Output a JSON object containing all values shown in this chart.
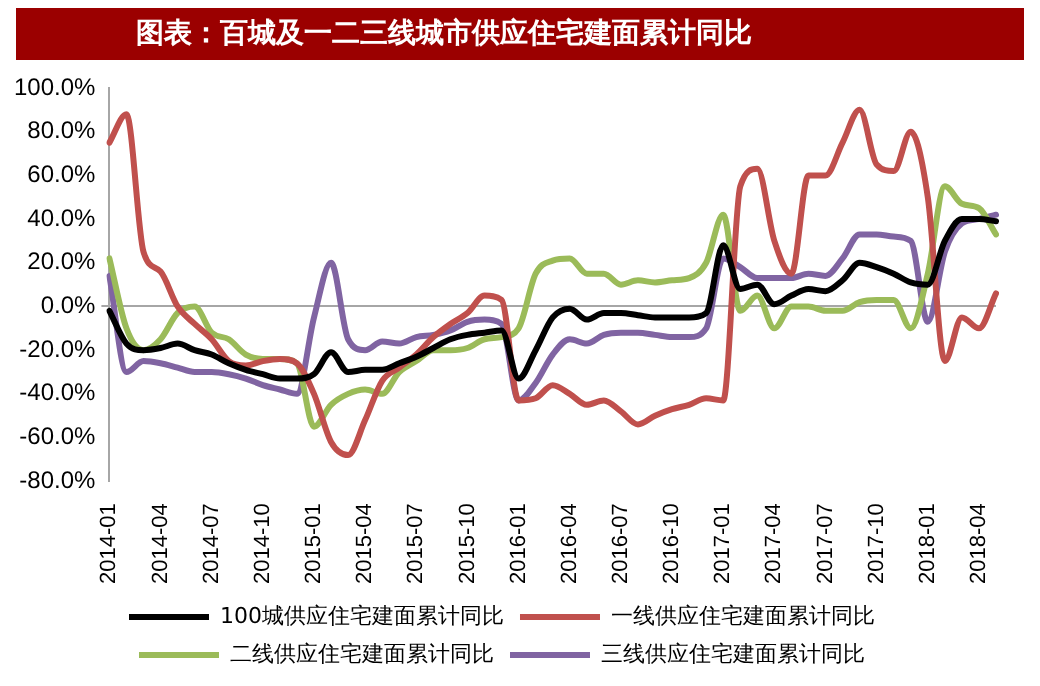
{
  "chart_data": {
    "type": "line",
    "title": "图表：百城及一二三线城市供应住宅建面累计同比",
    "categories": [
      "2014-01",
      null,
      null,
      "2014-04",
      null,
      null,
      "2014-07",
      null,
      null,
      "2014-10",
      null,
      null,
      "2015-01",
      null,
      null,
      "2015-04",
      null,
      null,
      "2015-07",
      null,
      null,
      "2015-10",
      null,
      null,
      "2016-01",
      null,
      null,
      "2016-04",
      null,
      null,
      "2016-07",
      null,
      null,
      "2016-10",
      null,
      null,
      "2017-01",
      null,
      null,
      "2017-04",
      null,
      null,
      "2017-07",
      null,
      null,
      "2017-10",
      null,
      null,
      "2018-01",
      null,
      null,
      "2018-04",
      null
    ],
    "series": [
      {
        "name": "100城供应住宅建面累计同比",
        "color": "#000000",
        "values": [
          -2,
          -17,
          -20,
          -19,
          -17,
          -20,
          -22,
          -26,
          -29,
          -31,
          -33,
          -33,
          -31,
          -21,
          -30,
          -29,
          -29,
          -26,
          -23,
          -19,
          -15,
          -13,
          -12,
          -11,
          -33,
          -20,
          -5,
          -1,
          -6,
          -3,
          -3,
          -4,
          -5,
          -5,
          -5,
          -3,
          28,
          8,
          10,
          1,
          5,
          8,
          7,
          12,
          20,
          18,
          15,
          11,
          10,
          30,
          40,
          40,
          39
        ]
      },
      {
        "name": "一线供应住宅建面累计同比",
        "color": "#c0504d",
        "values": [
          75,
          88,
          25,
          16,
          0,
          -8,
          -15,
          -25,
          -27,
          -25,
          -24,
          -26,
          -40,
          -62,
          -68,
          -52,
          -34,
          -28,
          -22,
          -14,
          -8,
          -3,
          5,
          3,
          -43,
          -42,
          -36,
          -40,
          -45,
          -43,
          -48,
          -54,
          -50,
          -47,
          -45,
          -42,
          -43,
          55,
          63,
          30,
          15,
          60,
          60,
          75,
          90,
          65,
          62,
          80,
          50,
          -25,
          -5,
          -10,
          6
        ]
      },
      {
        "name": "二线供应住宅建面累计同比",
        "color": "#9bbb59",
        "values": [
          22,
          -10,
          -20,
          -15,
          -3,
          0,
          -12,
          -15,
          -22,
          -24,
          -24,
          -26,
          -55,
          -45,
          -40,
          -38,
          -40,
          -30,
          -25,
          -20,
          -20,
          -19,
          -15,
          -14,
          -10,
          15,
          21,
          22,
          15,
          15,
          10,
          12,
          11,
          12,
          13,
          20,
          42,
          -2,
          5,
          -10,
          0,
          0,
          -2,
          -2,
          2,
          3,
          3,
          -10,
          15,
          55,
          47,
          45,
          33
        ]
      },
      {
        "name": "三线供应住宅建面累计同比",
        "color": "#8064a2",
        "values": [
          14,
          -30,
          -25,
          -26,
          -28,
          -30,
          -30,
          -31,
          -33,
          -36,
          -38,
          -40,
          -5,
          20,
          -15,
          -20,
          -16,
          -17,
          -14,
          -13,
          -11,
          -7,
          -6,
          -8,
          -43,
          -35,
          -22,
          -15,
          -17,
          -13,
          -12,
          -12,
          -13,
          -14,
          -14,
          -10,
          22,
          18,
          13,
          13,
          13,
          15,
          14,
          22,
          33,
          33,
          32,
          30,
          -7,
          25,
          38,
          40,
          42
        ]
      }
    ],
    "ylim": [
      -80,
      100
    ],
    "yticks": [
      {
        "value": -80,
        "label": "-80.0%"
      },
      {
        "value": -60,
        "label": "-60.0%"
      },
      {
        "value": -40,
        "label": "-40.0%"
      },
      {
        "value": -20,
        "label": "-20.0%"
      },
      {
        "value": 0,
        "label": "0.0%"
      },
      {
        "value": 20,
        "label": "20.0%"
      },
      {
        "value": 40,
        "label": "40.0%"
      },
      {
        "value": 60,
        "label": "60.0%"
      },
      {
        "value": 80,
        "label": "80.0%"
      },
      {
        "value": 100,
        "label": "100.0%"
      }
    ],
    "legend": "bottom",
    "marker": "none",
    "line_style": "solid"
  }
}
